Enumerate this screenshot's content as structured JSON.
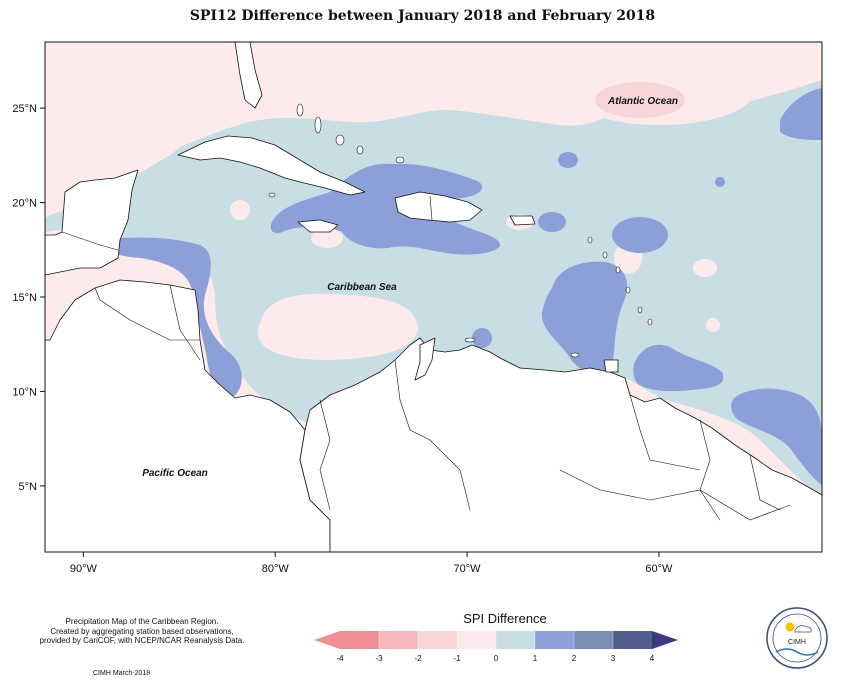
{
  "title": "SPI12 Difference between January 2018 and February 2018",
  "map": {
    "extent": {
      "lon_min": -92,
      "lon_max": -51.5,
      "lat_min": 1.5,
      "lat_max": 28.5
    },
    "lon_ticks": [
      {
        "value": -90,
        "label": "90°W"
      },
      {
        "value": -80,
        "label": "80°W"
      },
      {
        "value": -70,
        "label": "70°W"
      },
      {
        "value": -60,
        "label": "60°W"
      }
    ],
    "lat_ticks": [
      {
        "value": 25,
        "label": "25°N"
      },
      {
        "value": 20,
        "label": "20°N"
      },
      {
        "value": 15,
        "label": "15°N"
      },
      {
        "value": 10,
        "label": "10°N"
      },
      {
        "value": 5,
        "label": "5°N"
      }
    ],
    "labels": {
      "atlantic": "Atlantic Ocean",
      "caribbean": "Caribbean Sea",
      "pacific": "Pacific Ocean"
    }
  },
  "legend": {
    "title": "SPI Difference",
    "ticks": [
      "-4",
      "-3",
      "-2",
      "-1",
      "0",
      "1",
      "2",
      "3",
      "4"
    ],
    "colors": [
      "#f08e96",
      "#f3b9bc",
      "#f8d6d8",
      "#fdebec",
      "#c8dde4",
      "#8c9fd8",
      "#7990b4",
      "#525d8e",
      "#3c3a80"
    ]
  },
  "credits": {
    "lines": [
      "Precipitation Map of the Caribbean Region.",
      "Created by aggregating station based observations,",
      "provided by CariCOF, with NCEP/NCAR Reanalysis Data."
    ],
    "footer": "CIMH March-2018"
  },
  "logo": {
    "text": "CIMH"
  }
}
